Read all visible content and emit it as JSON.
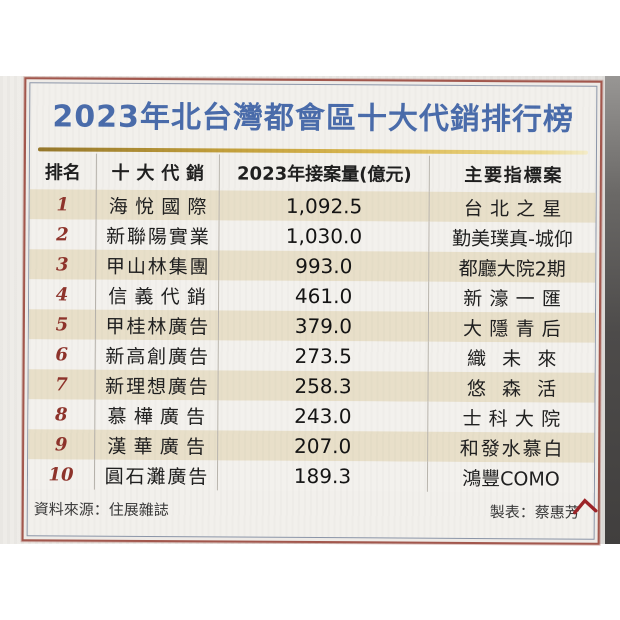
{
  "title": "2023年北台灣都會區十大代銷排行榜",
  "table": {
    "columns": [
      "排名",
      "十大代銷",
      "2023年接案量(億元)",
      "主要指標案"
    ],
    "rows": [
      {
        "rank": "1",
        "company": "海悅國際",
        "amount": "1,092.5",
        "project": "台北之星"
      },
      {
        "rank": "2",
        "company": "新聯陽實業",
        "amount": "1,030.0",
        "project": "勤美璞真-城仰"
      },
      {
        "rank": "3",
        "company": "甲山林集團",
        "amount": "993.0",
        "project": "都廳大院2期"
      },
      {
        "rank": "4",
        "company": "信義代銷",
        "amount": "461.0",
        "project": "新濠一匯"
      },
      {
        "rank": "5",
        "company": "甲桂林廣告",
        "amount": "379.0",
        "project": "大隱青后"
      },
      {
        "rank": "6",
        "company": "新高創廣告",
        "amount": "273.5",
        "project": "織未來"
      },
      {
        "rank": "7",
        "company": "新理想廣告",
        "amount": "258.3",
        "project": "悠森活"
      },
      {
        "rank": "8",
        "company": "慕樺廣告",
        "amount": "243.0",
        "project": "士科大院"
      },
      {
        "rank": "9",
        "company": "漢華廣告",
        "amount": "207.0",
        "project": "和發水慕白"
      },
      {
        "rank": "10",
        "company": "圓石灘廣告",
        "amount": "189.3",
        "project": "鴻豐COMO"
      }
    ]
  },
  "footer": {
    "source": "資料來源：住展雜誌",
    "credit": "製表：蔡惠芳"
  },
  "colors": {
    "title_blue": "#4a6cab",
    "rank_maroon": "#8e332b",
    "row_beige": "#e8dfc9",
    "row_light": "#f3f1ed",
    "gold_line": "#c3a03c",
    "frame_maroon": "#a2574d",
    "frame_gray": "#8b95a8"
  }
}
